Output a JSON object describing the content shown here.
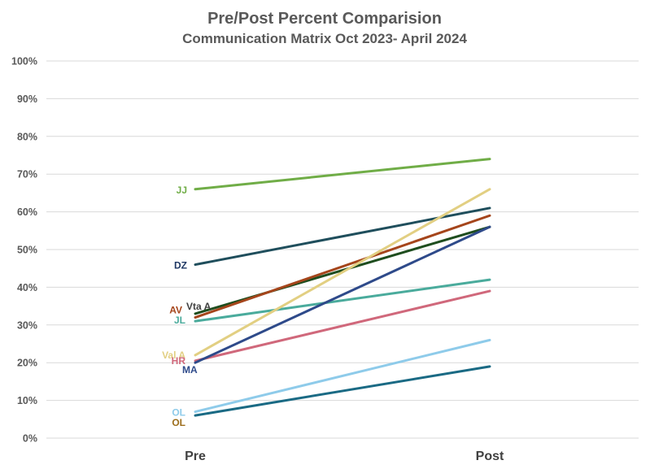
{
  "chart_data": {
    "type": "line",
    "title": "Pre/Post Percent Comparision",
    "subtitle": "Communication Matrix Oct 2023- April 2024",
    "categories": [
      "Pre",
      "Post"
    ],
    "y_ticks": [
      "0%",
      "10%",
      "20%",
      "30%",
      "40%",
      "50%",
      "60%",
      "70%",
      "80%",
      "90%",
      "100%"
    ],
    "ylim": [
      0,
      100
    ],
    "grid": true,
    "series": [
      {
        "name": "JJ",
        "values": [
          66,
          74
        ],
        "color": "#70ad47",
        "label_color": "#70ad47"
      },
      {
        "name": "DZ",
        "values": [
          46,
          61
        ],
        "color": "#1f4e5c",
        "label_color": "#1f3864"
      },
      {
        "name": "Vta A",
        "values": [
          33,
          56
        ],
        "color": "#1e4d1e",
        "label_color": "#404040"
      },
      {
        "name": "AV",
        "values": [
          32,
          59
        ],
        "color": "#a5451b",
        "label_color": "#a5451b"
      },
      {
        "name": "JL",
        "values": [
          31,
          42
        ],
        "color": "#4aab9c",
        "label_color": "#4aab9c"
      },
      {
        "name": "Val A",
        "values": [
          22,
          66
        ],
        "color": "#e2cf82",
        "label_color": "#e2cf82"
      },
      {
        "name": "HR",
        "values": [
          20.5,
          39
        ],
        "color": "#d0687b",
        "label_color": "#d0687b"
      },
      {
        "name": "MA",
        "values": [
          20,
          56
        ],
        "color": "#2e4a8a",
        "label_color": "#2e4a8a"
      },
      {
        "name": "OL",
        "values": [
          7,
          26
        ],
        "color": "#8ecbea",
        "label_color": "#8ecbea"
      },
      {
        "name": "OL",
        "values": [
          6,
          19
        ],
        "color": "#1a6a84",
        "label_color": "#9c6d1b"
      }
    ]
  }
}
